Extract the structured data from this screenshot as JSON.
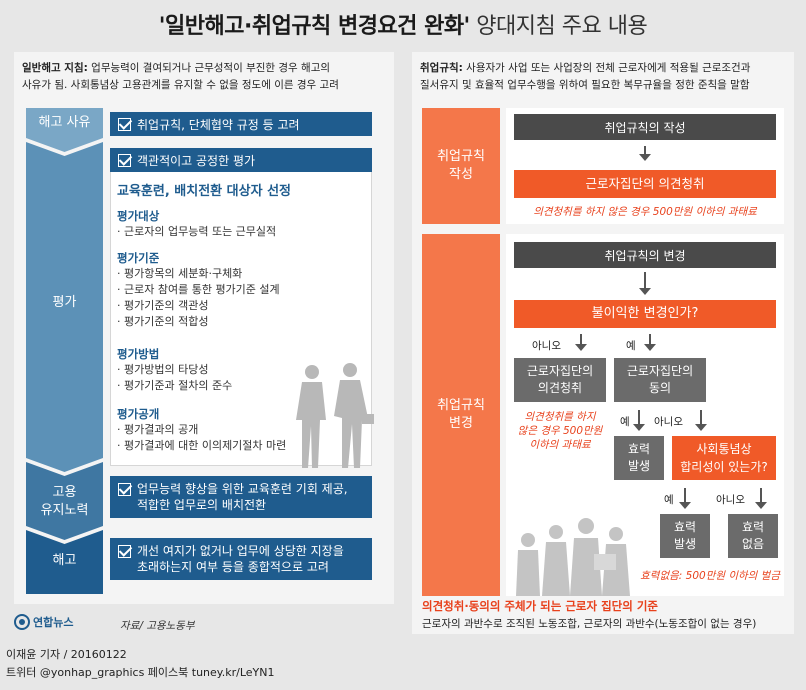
{
  "title": {
    "bold": "'일반해고·취업규칙 변경요건 완화'",
    "rest": " 양대지침 주요 내용"
  },
  "left": {
    "desc_label": "일반해고 지침:",
    "desc_line1": " 업무능력이 결여되거나 근무성적이 부진한 경우 해고의",
    "desc_line2": "사유가 됨. 사회통념상 고용관계를 유지할 수 없을 정도에 이른 경우 고려",
    "stages": [
      "해고 사유",
      "평가",
      "고용\n유지노력",
      "해고"
    ],
    "bar1": "취업규칙, 단체협약 규정 등 고려",
    "bar2": "객관적이고 공정한 평가",
    "eval_title": "교육훈련, 배치전환 대상자 선정",
    "groups": [
      {
        "head": "평가대상",
        "items": [
          "· 근로자의 업무능력 또는 근무실적"
        ]
      },
      {
        "head": "평가기준",
        "items": [
          "· 평가항목의 세분화·구체화",
          "· 근로자 참여를 통한 평가기준 설계",
          "· 평가기준의 객관성",
          "· 평가기준의 적합성"
        ]
      },
      {
        "head": "평가방법",
        "items": [
          "· 평가방법의 타당성",
          "· 평가기준과 절차의 준수"
        ]
      },
      {
        "head": "평가공개",
        "items": [
          "· 평가결과의 공개",
          "· 평가결과에 대한 이의제기절차 마련"
        ]
      }
    ],
    "bar3_l1": "업무능력 향상을 위한 교육훈련 기회 제공,",
    "bar3_l2": "적합한 업무로의 배치전환",
    "bar4_l1": "개선 여지가 없거나 업무에 상당한 지장을",
    "bar4_l2": "초래하는지 여부 등을 종합적으로 고려"
  },
  "right": {
    "desc_label": "취업규칙:",
    "desc_line1": " 사용자가 사업 또는 사업장의 전체 근로자에게 적용될 근로조건과",
    "desc_line2": "질서유지 및 효율적 업무수행을 위하여 필요한 복무규율을 정한 준칙을 말함",
    "side1": "취업규칙\n작성",
    "side2": "취업규칙\n변경",
    "write_box": "취업규칙의 작성",
    "write_orange": "근로자집단의 의견청취",
    "write_note": "의견청취를 하지 않은 경우 500만원 이하의 과태료",
    "change_box": "취업규칙의 변경",
    "question1": "불이익한 변경인가?",
    "no": "아니오",
    "yes": "예",
    "opinion_box": "근로자집단의\n의견청취",
    "consent_box": "근로자집단의\n동의",
    "opinion_note": "의견청취를 하지\n않은 경우 500만원\n이하의 과태료",
    "effect": "효력\n발생",
    "question2": "사회통념상\n합리성이 있는가?",
    "no_effect": "효력\n없음",
    "no_effect_note": "효력없음: 500만원 이하의 벌금",
    "footnote_title": "의견청취·동의의 주체가 되는 근로자 집단의 기준",
    "footnote_text": "근로자의 과반수로 조직된 노동조합, 근로자의 과반수(노동조합이 없는 경우)"
  },
  "logo": "연합뉴스",
  "source": "자료/ 고용노동부",
  "credit": "이재윤 기자 / 20160122",
  "social": "트위터 @yonhap_graphics  페이스북 tuney.kr/LeYN1",
  "colors": {
    "blue": "#1f5c8e",
    "orange": "#f05a28",
    "dark": "#4a4a4a",
    "gray": "#6b6b6b",
    "steel": "#7aa7c6",
    "red": "#e8411c"
  }
}
